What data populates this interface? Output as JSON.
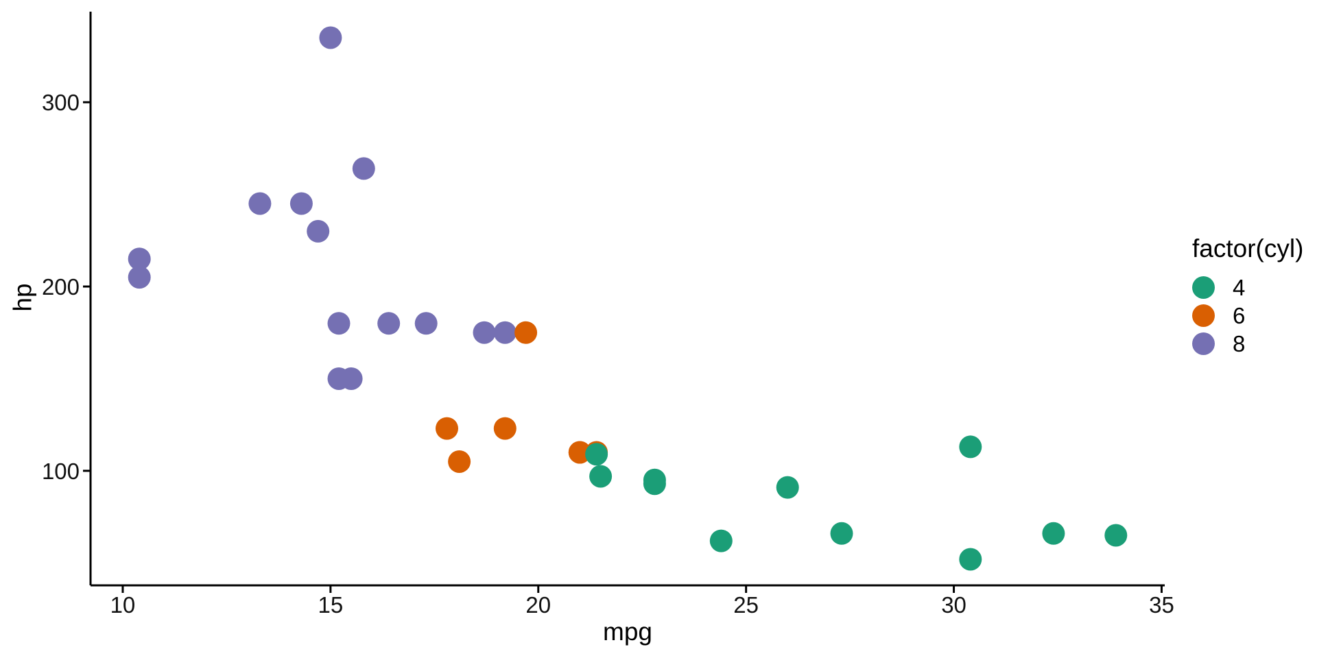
{
  "chart_data": {
    "type": "scatter",
    "xlabel": "mpg",
    "ylabel": "hp",
    "xlim": [
      9.225,
      35.075
    ],
    "ylim": [
      37.85,
      349.15
    ],
    "x_ticks": [
      "10",
      "15",
      "20",
      "25",
      "30",
      "35"
    ],
    "y_ticks": [
      "100",
      "200",
      "300"
    ],
    "grid": false,
    "background": "#ffffff",
    "axis_color": "#000000",
    "tick_label_color": "#111111",
    "colors": {
      "4": "#1B9E77",
      "6": "#D95F02",
      "8": "#7570B3"
    },
    "legend": {
      "title": "factor(cyl)",
      "position": "right",
      "items": [
        {
          "label": "4",
          "color": "#1B9E77"
        },
        {
          "label": "6",
          "color": "#D95F02"
        },
        {
          "label": "8",
          "color": "#7570B3"
        }
      ]
    },
    "points": [
      {
        "mpg": 21.0,
        "hp": 110,
        "cyl": "6"
      },
      {
        "mpg": 21.0,
        "hp": 110,
        "cyl": "6"
      },
      {
        "mpg": 22.8,
        "hp": 93,
        "cyl": "4"
      },
      {
        "mpg": 21.4,
        "hp": 110,
        "cyl": "6"
      },
      {
        "mpg": 18.7,
        "hp": 175,
        "cyl": "8"
      },
      {
        "mpg": 18.1,
        "hp": 105,
        "cyl": "6"
      },
      {
        "mpg": 14.3,
        "hp": 245,
        "cyl": "8"
      },
      {
        "mpg": 24.4,
        "hp": 62,
        "cyl": "4"
      },
      {
        "mpg": 22.8,
        "hp": 95,
        "cyl": "4"
      },
      {
        "mpg": 19.2,
        "hp": 123,
        "cyl": "6"
      },
      {
        "mpg": 17.8,
        "hp": 123,
        "cyl": "6"
      },
      {
        "mpg": 16.4,
        "hp": 180,
        "cyl": "8"
      },
      {
        "mpg": 17.3,
        "hp": 180,
        "cyl": "8"
      },
      {
        "mpg": 15.2,
        "hp": 180,
        "cyl": "8"
      },
      {
        "mpg": 10.4,
        "hp": 205,
        "cyl": "8"
      },
      {
        "mpg": 10.4,
        "hp": 215,
        "cyl": "8"
      },
      {
        "mpg": 14.7,
        "hp": 230,
        "cyl": "8"
      },
      {
        "mpg": 32.4,
        "hp": 66,
        "cyl": "4"
      },
      {
        "mpg": 30.4,
        "hp": 52,
        "cyl": "4"
      },
      {
        "mpg": 33.9,
        "hp": 65,
        "cyl": "4"
      },
      {
        "mpg": 21.5,
        "hp": 97,
        "cyl": "4"
      },
      {
        "mpg": 15.5,
        "hp": 150,
        "cyl": "8"
      },
      {
        "mpg": 15.2,
        "hp": 150,
        "cyl": "8"
      },
      {
        "mpg": 13.3,
        "hp": 245,
        "cyl": "8"
      },
      {
        "mpg": 19.2,
        "hp": 175,
        "cyl": "8"
      },
      {
        "mpg": 27.3,
        "hp": 66,
        "cyl": "4"
      },
      {
        "mpg": 26.0,
        "hp": 91,
        "cyl": "4"
      },
      {
        "mpg": 30.4,
        "hp": 113,
        "cyl": "4"
      },
      {
        "mpg": 15.8,
        "hp": 264,
        "cyl": "8"
      },
      {
        "mpg": 19.7,
        "hp": 175,
        "cyl": "6"
      },
      {
        "mpg": 15.0,
        "hp": 335,
        "cyl": "8"
      },
      {
        "mpg": 21.4,
        "hp": 109,
        "cyl": "4"
      }
    ]
  }
}
